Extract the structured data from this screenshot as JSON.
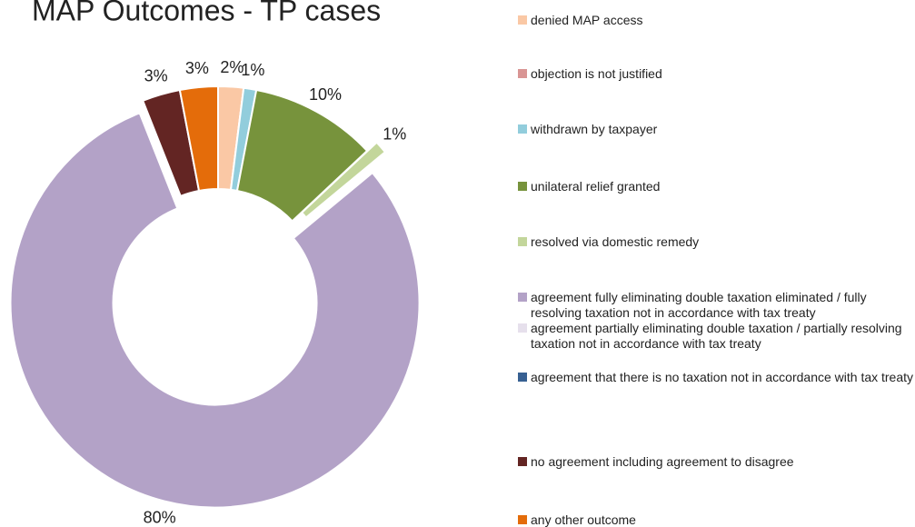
{
  "chart_data": {
    "type": "donut",
    "title": "MAP Outcomes - TP cases",
    "categories": [
      "denied MAP access",
      "objection is not justified",
      "withdrawn by taxpayer",
      "unilateral relief granted",
      "resolved via domestic remedy",
      "agreement fully eliminating double taxation eliminated / fully resolving taxation not in accordance with tax treaty",
      "agreement partially eliminating double taxation / partially resolving taxation not in accordance with tax treaty",
      "agreement that there is no taxation not in accordance with tax treaty",
      "no agreement including agreement to disagree",
      "any other outcome"
    ],
    "values": [
      2,
      0,
      1,
      10,
      1,
      80,
      0,
      0,
      3,
      3
    ],
    "value_labels": [
      "2%",
      null,
      "1%",
      "10%",
      "1%",
      "80%",
      null,
      null,
      "3%",
      "3%"
    ],
    "colors": [
      "#fac8a5",
      "#d99594",
      "#92cddc",
      "#77933c",
      "#c3d69b",
      "#b3a2c7",
      "#e6e0ec",
      "#376092",
      "#632523",
      "#e46c0a"
    ],
    "explode": [
      false,
      false,
      false,
      false,
      true,
      true,
      false,
      false,
      false,
      false
    ],
    "legend": "right"
  }
}
